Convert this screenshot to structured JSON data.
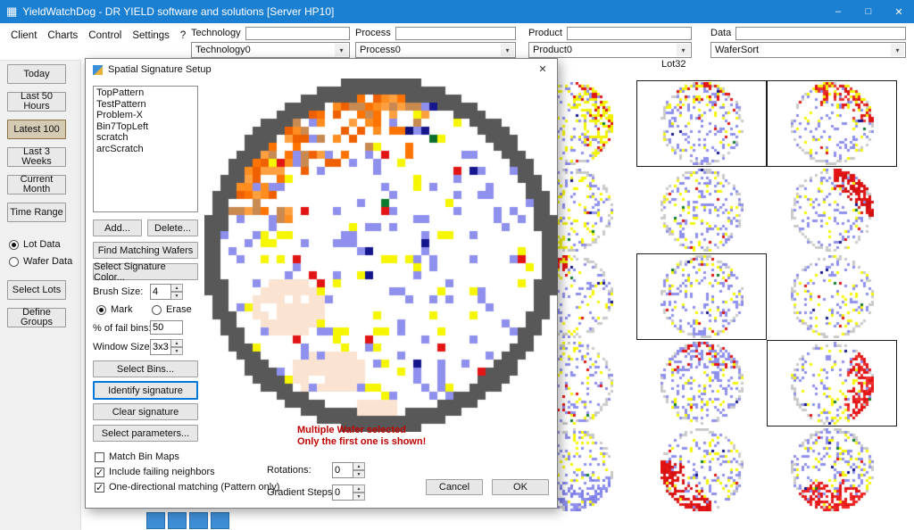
{
  "window": {
    "title": "YieldWatchDog - DR YIELD software and solutions [Server HP10]",
    "minimize": "–",
    "maximize": "□",
    "close": "✕"
  },
  "icons": {
    "app": "▦",
    "spin_up": "▲",
    "spin_down": "▼",
    "combo_arrow": "▾"
  },
  "menu": {
    "items": [
      "Client",
      "Charts",
      "Control",
      "Settings",
      "?"
    ]
  },
  "filters": [
    {
      "label": "Technology",
      "value": "",
      "selected": "Technology0"
    },
    {
      "label": "Process",
      "value": "",
      "selected": "Process0"
    },
    {
      "label": "Product",
      "value": "",
      "selected": "Product0"
    },
    {
      "label": "Data",
      "value": "",
      "selected": "WaferSort"
    }
  ],
  "sidebar": {
    "time_buttons": [
      "Today",
      "Last 50 Hours",
      "Latest 100",
      "Last 3 Weeks",
      "Current Month",
      "Time Range"
    ],
    "active_button": "Latest 100",
    "data_radios": [
      {
        "label": "Lot Data",
        "checked": true
      },
      {
        "label": "Wafer Data",
        "checked": false
      }
    ],
    "action_buttons": [
      "Select Lots",
      "Define Groups"
    ]
  },
  "main": {
    "lot_label": "Lot32"
  },
  "dialog": {
    "title": "Spatial Signature Setup",
    "close": "✕",
    "signature_list": [
      "TopPattern",
      "TestPattern",
      "Problem-X",
      "Bin7TopLeft",
      "scratch",
      "arcScratch"
    ],
    "add_button": "Add...",
    "delete_button": "Delete...",
    "find_matching_button": "Find Matching Wafers",
    "signature_color_button": "Select Signature Color...",
    "brush_size_label": "Brush Size:",
    "brush_size_value": "4",
    "mark_label": "Mark",
    "erase_label": "Erase",
    "mark_checked": true,
    "erase_checked": false,
    "fail_bins_label": "% of fail bins:",
    "fail_bins_value": "50",
    "window_size_label": "Window Size:",
    "window_size_value": "3x3",
    "select_bins_button": "Select Bins...",
    "identify_button": "Identify signature",
    "clear_button": "Clear signature",
    "select_params_button": "Select parameters...",
    "checkboxes": [
      {
        "label": "Match Bin Maps",
        "checked": false
      },
      {
        "label": "Include failing neighbors",
        "checked": true
      },
      {
        "label": "One-directional matching (Pattern only)",
        "checked": true
      }
    ],
    "rotations_label": "Rotations:",
    "rotations_value": "0",
    "gradient_label": "Gradient Steps:",
    "gradient_value": "0",
    "cancel_button": "Cancel",
    "ok_button": "OK",
    "warning_line1": "Multiple Wafer selected",
    "warning_line2": "Only the first one is shown!"
  },
  "colors": {
    "titlebar": "#1b7fd2",
    "accent": "#0078d7",
    "warning": "#c00000",
    "wafer_blue": "#8f8fee",
    "wafer_yellow": "#f6f600",
    "wafer_red": "#e21414",
    "wafer_orange": "#ff7300",
    "wafer_ring": "#585858"
  }
}
